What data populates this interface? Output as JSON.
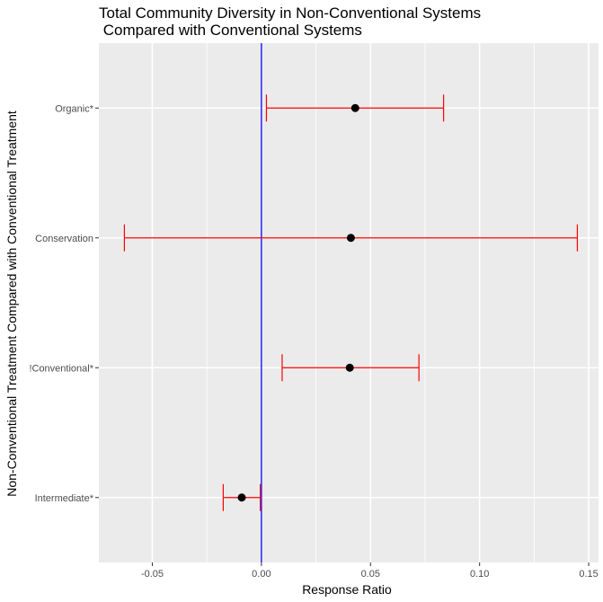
{
  "chart_data": {
    "type": "errorbar",
    "title_lines": [
      "Total Community Diversity in Non-Conventional Systems",
      " Compared with Conventional Systems"
    ],
    "xlabel": "Response Ratio",
    "ylabel": "Non-Conventional Treatment Compared with Conventional Treatment",
    "xlim": [
      -0.0745,
      0.1545
    ],
    "xticks": [
      -0.05,
      0.0,
      0.05,
      0.1,
      0.15
    ],
    "xtick_labels": [
      "-0.05",
      "0.00",
      "0.05",
      "0.10",
      "0.15"
    ],
    "reference_line": {
      "x": 0.0,
      "color": "#0000ff"
    },
    "categories": [
      "Organic*",
      "Conservation",
      "!Conventional*",
      "Intermediate*"
    ],
    "points": [
      {
        "category": "Organic*",
        "estimate": 0.043,
        "lower": 0.0023,
        "upper": 0.0835
      },
      {
        "category": "Conservation",
        "estimate": 0.041,
        "lower": -0.0628,
        "upper": 0.1448
      },
      {
        "category": "!Conventional*",
        "estimate": 0.0405,
        "lower": 0.0095,
        "upper": 0.0722
      },
      {
        "category": "Intermediate*",
        "estimate": -0.009,
        "lower": -0.0175,
        "upper": -0.0005
      }
    ],
    "colors": {
      "panel_background": "#ebebeb",
      "grid": "#ffffff",
      "errorbar": "#ff0000",
      "point": "#000000"
    },
    "grid": true,
    "legend": "none"
  }
}
